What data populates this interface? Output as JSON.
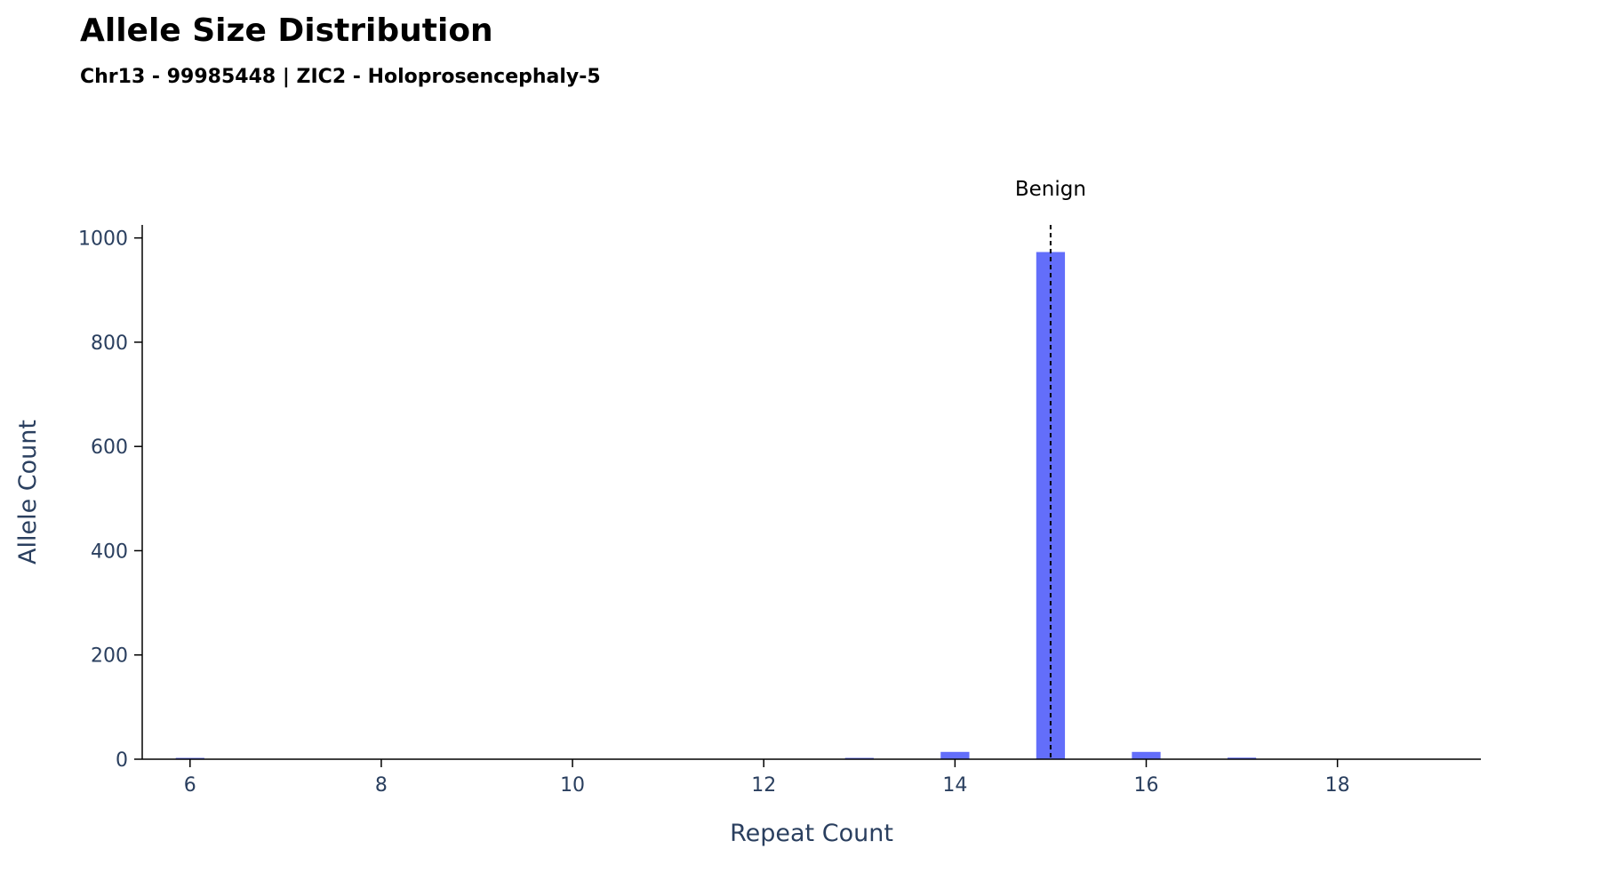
{
  "chart_data": {
    "type": "bar",
    "title": "Allele Size Distribution",
    "subtitle": "Chr13 - 99985448 | ZIC2 - Holoprosencephaly-5",
    "xlabel": "Repeat Count",
    "ylabel": "Allele Count",
    "x": [
      6,
      13,
      14,
      15,
      16,
      17
    ],
    "values": [
      1,
      2,
      14,
      973,
      14,
      3
    ],
    "xlim": [
      5.5,
      19.5
    ],
    "ylim": [
      0,
      1025
    ],
    "xticks": [
      6,
      8,
      10,
      12,
      14,
      16,
      18
    ],
    "yticks": [
      0,
      200,
      400,
      600,
      800,
      1000
    ],
    "bar_color": "#636efa",
    "grid": false,
    "reference_lines": [
      {
        "x": 15,
        "label": "Benign",
        "style": "dashed",
        "color": "#000000"
      }
    ]
  }
}
